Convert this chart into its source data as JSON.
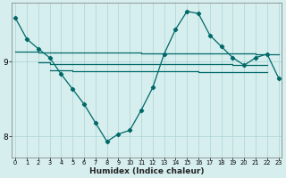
{
  "xlabel": "Humidex (Indice chaleur)",
  "bg_color": "#d6eeee",
  "line_color": "#006868",
  "grid_color": "#aad4d4",
  "x_ticks": [
    0,
    1,
    2,
    3,
    4,
    5,
    6,
    7,
    8,
    9,
    10,
    11,
    12,
    13,
    14,
    15,
    16,
    17,
    18,
    19,
    20,
    21,
    22,
    23
  ],
  "xlim": [
    -0.3,
    23.3
  ],
  "ylim": [
    7.72,
    9.78
  ],
  "y_ticks": [
    8,
    9
  ],
  "main_x": [
    0,
    1,
    2,
    3,
    4,
    5,
    6,
    7,
    8,
    9,
    10,
    11,
    12,
    13,
    14,
    15,
    16,
    17,
    18,
    19,
    20,
    21,
    22,
    23
  ],
  "main_y": [
    9.58,
    9.3,
    9.17,
    9.05,
    8.83,
    8.63,
    8.43,
    8.18,
    7.93,
    8.03,
    8.08,
    8.35,
    8.65,
    9.1,
    9.43,
    9.67,
    9.64,
    9.35,
    9.2,
    9.05,
    8.95,
    9.05,
    9.1,
    8.78
  ],
  "flat1_x": [
    0,
    2,
    2,
    11,
    11,
    21,
    21,
    23
  ],
  "flat1_y": [
    9.13,
    9.13,
    9.12,
    9.12,
    9.11,
    9.11,
    9.1,
    9.1
  ],
  "flat2_x": [
    2,
    3,
    3,
    10,
    10,
    19,
    19,
    22
  ],
  "flat2_y": [
    8.99,
    8.99,
    8.97,
    8.97,
    8.96,
    8.96,
    8.95,
    8.95
  ],
  "flat3_x": [
    3,
    5,
    5,
    16,
    16,
    22
  ],
  "flat3_y": [
    8.88,
    8.88,
    8.87,
    8.87,
    8.86,
    8.86
  ]
}
